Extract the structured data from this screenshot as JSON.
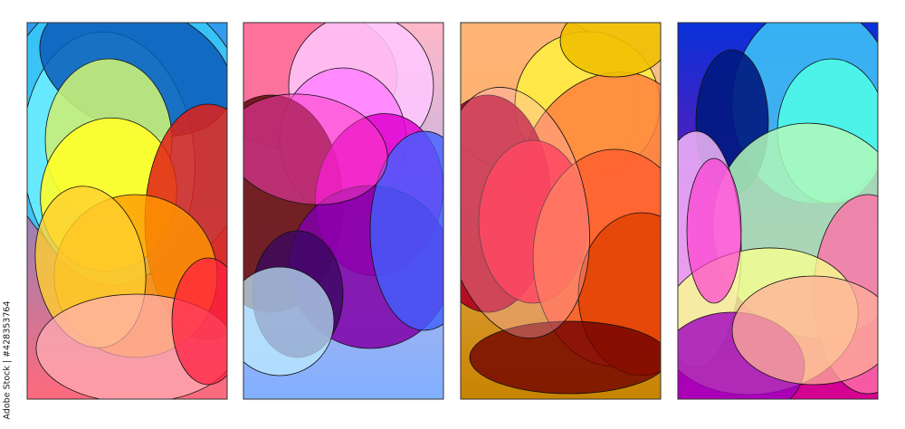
{
  "credit": "Adobe Stock | #428353764",
  "panels": [
    {
      "name": "panel-1",
      "background_top": "#2e9cf0",
      "background_bottom": "#ff6a7c",
      "colors": [
        "#38c8f8",
        "#6ff0ff",
        "#0b5cb8",
        "#c8ee78",
        "#ffff2a",
        "#e22018",
        "#ff9a00",
        "#ffd030",
        "#ffb0b8",
        "#ff2040"
      ]
    },
    {
      "name": "panel-2",
      "background_top": "#ffb8c8",
      "background_bottom": "#80b0ff",
      "colors": [
        "#ff6090",
        "#ffc8ff",
        "#ff80ff",
        "#6a1010",
        "#e000d0",
        "#8000a8",
        "#3a0860",
        "#4060ff",
        "#c0f0ff",
        "#ff40c0"
      ]
    },
    {
      "name": "panel-3",
      "background_top": "#ffc89a",
      "background_bottom": "#c88400",
      "colors": [
        "#ffb070",
        "#fff040",
        "#ff8040",
        "#b00020",
        "#ff1030",
        "#ff6030",
        "#e04000",
        "#700000",
        "#ffb0c0",
        "#f0c000"
      ]
    },
    {
      "name": "panel-4",
      "background_top": "#0830d8",
      "background_bottom": "#d80090",
      "colors": [
        "#40c8f8",
        "#50ffe8",
        "#001a80",
        "#b0f8b8",
        "#ff70a8",
        "#ffc0ff",
        "#f8ff90",
        "#a000c0",
        "#ffb098",
        "#ff40d0"
      ]
    }
  ]
}
